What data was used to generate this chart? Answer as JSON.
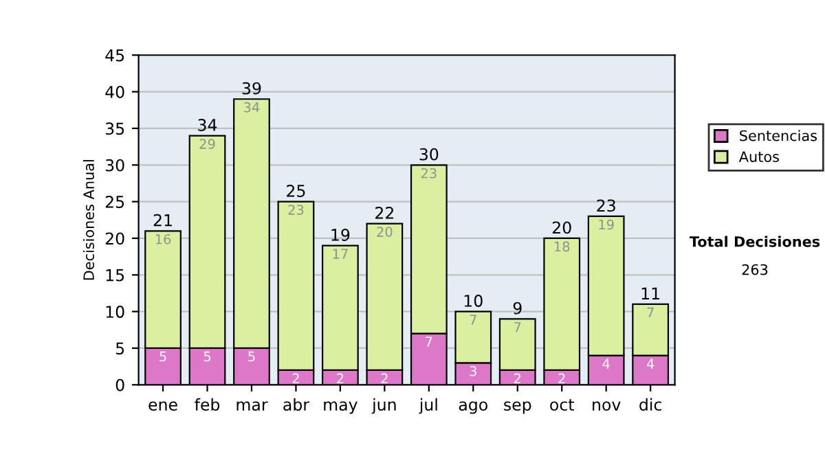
{
  "chart_data": {
    "type": "bar",
    "stacked": true,
    "ylabel": "Decisiones Anual",
    "categories": [
      "ene",
      "feb",
      "mar",
      "abr",
      "may",
      "jun",
      "jul",
      "ago",
      "sep",
      "oct",
      "nov",
      "dic"
    ],
    "series": [
      {
        "name": "Sentencias",
        "color": "#dd77c8",
        "values": [
          5,
          5,
          5,
          2,
          2,
          2,
          7,
          3,
          2,
          2,
          4,
          4
        ]
      },
      {
        "name": "Autos",
        "color": "#d8f0a0",
        "values": [
          16,
          29,
          34,
          23,
          17,
          20,
          23,
          7,
          7,
          18,
          19,
          7
        ]
      }
    ],
    "ylim": [
      0,
      45
    ],
    "yticks": [
      0,
      5,
      10,
      15,
      20,
      25,
      30,
      35,
      40,
      45
    ],
    "grid": "y",
    "legend": "right",
    "data_labels": true,
    "totals": [
      "21",
      "34",
      "39",
      "25",
      "19",
      "22",
      "30",
      "10",
      "9",
      "20",
      "23",
      "11"
    ],
    "annotations": [
      "Total Decisiones",
      "263"
    ]
  }
}
